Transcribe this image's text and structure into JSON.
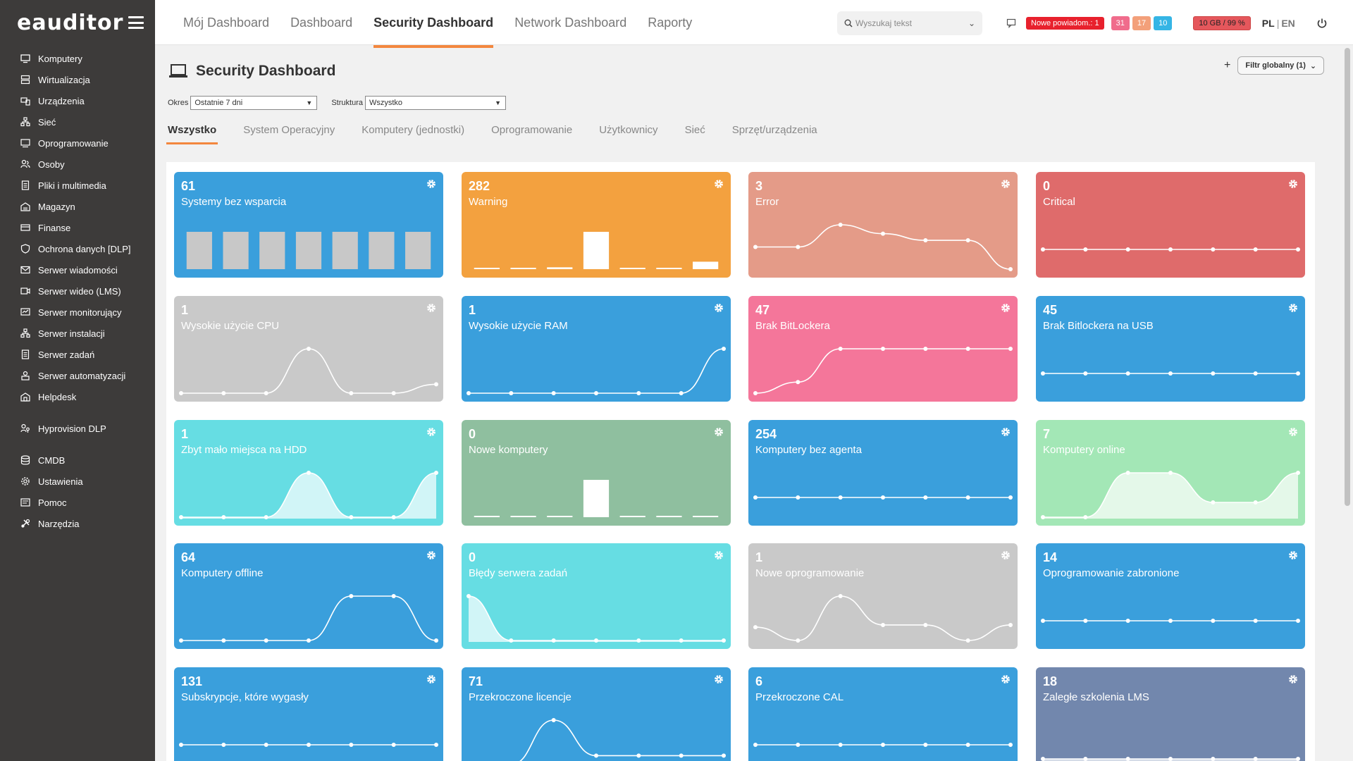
{
  "app": {
    "logo": "eauditor"
  },
  "sidebar": {
    "items": [
      {
        "label": "Komputery",
        "icon": "monitor-icon",
        "gap": false
      },
      {
        "label": "Wirtualizacja",
        "icon": "server-icon",
        "gap": false
      },
      {
        "label": "Urządzenia",
        "icon": "devices-icon",
        "gap": false
      },
      {
        "label": "Sieć",
        "icon": "network-icon",
        "gap": false
      },
      {
        "label": "Oprogramowanie",
        "icon": "software-icon",
        "gap": false
      },
      {
        "label": "Osoby",
        "icon": "people-icon",
        "gap": false
      },
      {
        "label": "Pliki i multimedia",
        "icon": "files-icon",
        "gap": false
      },
      {
        "label": "Magazyn",
        "icon": "warehouse-icon",
        "gap": false
      },
      {
        "label": "Finanse",
        "icon": "finance-icon",
        "gap": false
      },
      {
        "label": "Ochrona danych [DLP]",
        "icon": "shield-icon",
        "gap": false
      },
      {
        "label": "Serwer wiadomości",
        "icon": "mail-icon",
        "gap": false
      },
      {
        "label": "Serwer wideo (LMS)",
        "icon": "video-icon",
        "gap": false
      },
      {
        "label": "Serwer monitorujący",
        "icon": "monitoring-icon",
        "gap": false
      },
      {
        "label": "Serwer instalacji",
        "icon": "install-icon",
        "gap": false
      },
      {
        "label": "Serwer zadań",
        "icon": "tasks-icon",
        "gap": false
      },
      {
        "label": "Serwer automatyzacji",
        "icon": "automation-icon",
        "gap": false
      },
      {
        "label": "Helpdesk",
        "icon": "helpdesk-icon",
        "gap": true
      },
      {
        "label": "Hyprovision DLP",
        "icon": "user-key-icon",
        "gap": true
      },
      {
        "label": "CMDB",
        "icon": "database-icon",
        "gap": false
      },
      {
        "label": "Ustawienia",
        "icon": "gear-icon",
        "gap": false
      },
      {
        "label": "Pomoc",
        "icon": "help-icon",
        "gap": false
      },
      {
        "label": "Narzędzia",
        "icon": "tools-icon",
        "gap": false
      }
    ]
  },
  "header": {
    "tabs": [
      {
        "label": "Mój Dashboard",
        "active": false
      },
      {
        "label": "Dashboard",
        "active": false
      },
      {
        "label": "Security Dashboard",
        "active": true
      },
      {
        "label": "Network Dashboard",
        "active": false
      },
      {
        "label": "Raporty",
        "active": false
      }
    ],
    "search_placeholder": "Wyszukaj tekst",
    "notification_label": "Nowe powiadom.: 1",
    "counters": [
      {
        "value": "31",
        "color": "#f06c8c"
      },
      {
        "value": "17",
        "color": "#f3a07a"
      },
      {
        "value": "10",
        "color": "#35b5e5"
      }
    ],
    "storage": "10 GB / 99 %",
    "lang_pl": "PL",
    "lang_sep": "|",
    "lang_en": "EN"
  },
  "page": {
    "title": "Security Dashboard",
    "filter_global": "Filtr globalny (1)",
    "period_label": "Okres",
    "period_value": "Ostatnie 7 dni",
    "structure_label": "Struktura",
    "structure_value": "Wszystko",
    "subtabs": [
      {
        "label": "Wszystko",
        "active": true
      },
      {
        "label": "System Operacyjny",
        "active": false
      },
      {
        "label": "Komputery (jednostki)",
        "active": false
      },
      {
        "label": "Oprogramowanie",
        "active": false
      },
      {
        "label": "Użytkownicy",
        "active": false
      },
      {
        "label": "Sieć",
        "active": false
      },
      {
        "label": "Sprzęt/urządzenia",
        "active": false
      }
    ]
  },
  "tiles": [
    {
      "value": "61",
      "label": "Systemy bez wsparcia",
      "color": "#3a9fdc",
      "chart": "bar",
      "series": [
        1,
        1,
        1,
        1,
        1,
        1,
        1
      ],
      "bar_color": "#c8c8c8"
    },
    {
      "value": "282",
      "label": "Warning",
      "color": "#f3a13f",
      "chart": "bar",
      "series": [
        0.02,
        0.02,
        0.05,
        1,
        0.02,
        0.02,
        0.2
      ],
      "bar_color": "#ffffff"
    },
    {
      "value": "3",
      "label": "Error",
      "color": "#e49b88",
      "chart": "line",
      "series": [
        1,
        1,
        2,
        1.6,
        1.3,
        1.3,
        0
      ]
    },
    {
      "value": "0",
      "label": "Critical",
      "color": "#df6b6b",
      "chart": "line",
      "series": [
        0,
        0,
        0,
        0,
        0,
        0,
        0
      ]
    },
    {
      "value": "1",
      "label": "Wysokie użycie CPU",
      "color": "#c9c9c9",
      "chart": "line",
      "series": [
        0,
        0,
        0,
        1,
        0,
        0,
        0.2
      ]
    },
    {
      "value": "1",
      "label": "Wysokie użycie RAM",
      "color": "#3a9fdc",
      "chart": "line",
      "series": [
        0,
        0,
        0,
        0,
        0,
        0,
        1
      ]
    },
    {
      "value": "47",
      "label": "Brak BitLockera",
      "color": "#f4769a",
      "chart": "line",
      "series": [
        46.5,
        46.6,
        46.9,
        46.9,
        46.9,
        46.9,
        46.9
      ]
    },
    {
      "value": "45",
      "label": "Brak Bitlockera na USB",
      "color": "#3a9fdc",
      "chart": "line",
      "series": [
        0,
        0,
        0,
        0,
        0,
        0,
        0
      ]
    },
    {
      "value": "1",
      "label": "Zbyt mało miejsca na HDD",
      "color": "#66dde3",
      "chart": "area",
      "series": [
        0,
        0,
        0,
        1,
        0,
        0,
        1
      ]
    },
    {
      "value": "0",
      "label": "Nowe komputery",
      "color": "#8fbf9f",
      "chart": "bar",
      "series": [
        0,
        0,
        0,
        1,
        0,
        0,
        0
      ],
      "bar_color": "#ffffff"
    },
    {
      "value": "254",
      "label": "Komputery bez agenta",
      "color": "#3a9fdc",
      "chart": "line",
      "series": [
        0,
        0,
        0,
        0,
        0,
        0,
        0
      ]
    },
    {
      "value": "7",
      "label": "Komputery online",
      "color": "#a3e7b6",
      "chart": "area",
      "series": [
        6.6,
        6.6,
        6.9,
        6.9,
        6.7,
        6.7,
        6.9
      ]
    },
    {
      "value": "64",
      "label": "Komputery offline",
      "color": "#3a9fdc",
      "chart": "line",
      "series": [
        63.9,
        63.9,
        63.9,
        63.9,
        64,
        64,
        63.9
      ]
    },
    {
      "value": "0",
      "label": "Błędy serwera zadań",
      "color": "#66dde3",
      "chart": "area",
      "series": [
        1,
        0,
        0,
        0,
        0,
        0,
        0
      ]
    },
    {
      "value": "1",
      "label": "Nowe oprogramowanie",
      "color": "#c9c9c9",
      "chart": "line",
      "series": [
        0.6,
        0,
        2,
        0.7,
        0.7,
        0,
        0.7
      ]
    },
    {
      "value": "14",
      "label": "Oprogramowanie zabronione",
      "color": "#3a9fdc",
      "chart": "line",
      "series": [
        0,
        0,
        0,
        0,
        0,
        0,
        0
      ]
    },
    {
      "value": "131",
      "label": "Subskrypcje, które wygasły",
      "color": "#3a9fdc",
      "chart": "line",
      "series": [
        0,
        0,
        0,
        0,
        0,
        0,
        0
      ]
    },
    {
      "value": "71",
      "label": "Przekroczone licencje",
      "color": "#3a9fdc",
      "chart": "line",
      "series": [
        70.5,
        70.5,
        71,
        70.6,
        70.6,
        70.6,
        70.6
      ]
    },
    {
      "value": "6",
      "label": "Przekroczone CAL",
      "color": "#3a9fdc",
      "chart": "line",
      "series": [
        0,
        0,
        0,
        0,
        0,
        0,
        0
      ]
    },
    {
      "value": "18",
      "label": "Zaległe szkolenia LMS",
      "color": "#7287ad",
      "chart": "area",
      "series": [
        0,
        0,
        0,
        0,
        0,
        0,
        0
      ]
    }
  ]
}
